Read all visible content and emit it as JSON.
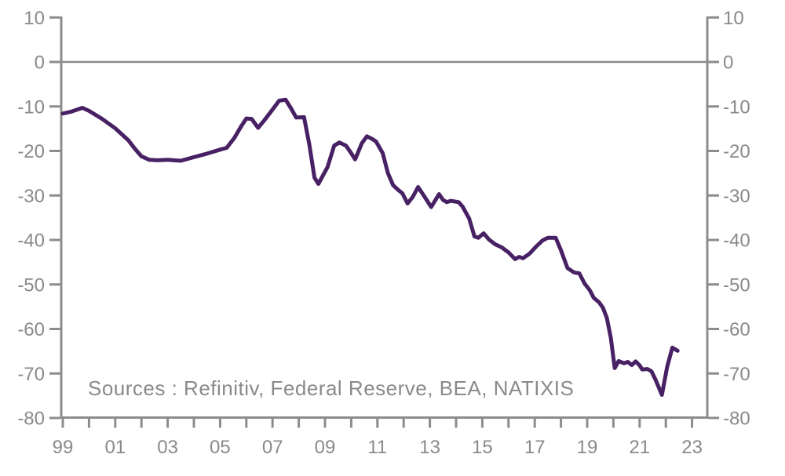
{
  "chart_data": {
    "type": "line",
    "title": "",
    "xlabel": "",
    "ylabel": "",
    "xlim": [
      1999,
      2023.7
    ],
    "ylim": [
      -80,
      10
    ],
    "grid": "zero-line-only",
    "dual_y_axis": true,
    "legend": "none",
    "colors": {
      "line": "#482164",
      "axis": "#8c8c8c",
      "label": "#8a8a8a"
    },
    "y_ticks": [
      10,
      0,
      -10,
      -20,
      -30,
      -40,
      -50,
      -60,
      -70,
      -80
    ],
    "y_tick_labels": [
      "10",
      "0",
      "-10",
      "-20",
      "-30",
      "-40",
      "-50",
      "-60",
      "-70",
      "-80"
    ],
    "x_tick_years_all": [
      1999,
      2000,
      2001,
      2002,
      2003,
      2004,
      2005,
      2006,
      2007,
      2008,
      2009,
      2010,
      2011,
      2012,
      2013,
      2014,
      2015,
      2016,
      2017,
      2018,
      2019,
      2020,
      2021,
      2022,
      2023
    ],
    "x_labeled_years": [
      1999,
      2001,
      2003,
      2005,
      2007,
      2009,
      2011,
      2013,
      2015,
      2017,
      2019,
      2021,
      2023
    ],
    "x_tick_labels": [
      "99",
      "01",
      "03",
      "05",
      "07",
      "09",
      "11",
      "13",
      "15",
      "17",
      "19",
      "21",
      "23"
    ],
    "source_note": "Sources : Refinitiv, Federal Reserve, BEA, NATIXIS",
    "series": [
      {
        "name": "line-series",
        "points": [
          [
            1999.0,
            -11.6
          ],
          [
            1999.3,
            -11.2
          ],
          [
            1999.75,
            -10.3
          ],
          [
            2000.0,
            -11.0
          ],
          [
            2000.5,
            -12.8
          ],
          [
            2001.0,
            -14.9
          ],
          [
            2001.5,
            -17.6
          ],
          [
            2001.75,
            -19.5
          ],
          [
            2002.0,
            -21.2
          ],
          [
            2002.3,
            -22.0
          ],
          [
            2002.6,
            -22.1
          ],
          [
            2003.0,
            -22.0
          ],
          [
            2003.5,
            -22.2
          ],
          [
            2003.75,
            -21.8
          ],
          [
            2004.0,
            -21.4
          ],
          [
            2004.5,
            -20.6
          ],
          [
            2005.0,
            -19.7
          ],
          [
            2005.25,
            -19.3
          ],
          [
            2005.55,
            -17.0
          ],
          [
            2005.8,
            -14.5
          ],
          [
            2006.0,
            -12.7
          ],
          [
            2006.2,
            -12.8
          ],
          [
            2006.45,
            -14.8
          ],
          [
            2006.7,
            -13.0
          ],
          [
            2007.0,
            -10.7
          ],
          [
            2007.25,
            -8.7
          ],
          [
            2007.5,
            -8.5
          ],
          [
            2007.7,
            -10.4
          ],
          [
            2007.9,
            -12.5
          ],
          [
            2008.2,
            -12.4
          ],
          [
            2008.4,
            -18.5
          ],
          [
            2008.6,
            -26.0
          ],
          [
            2008.75,
            -27.4
          ],
          [
            2009.1,
            -23.6
          ],
          [
            2009.35,
            -18.8
          ],
          [
            2009.55,
            -18.1
          ],
          [
            2009.8,
            -18.8
          ],
          [
            2010.0,
            -20.5
          ],
          [
            2010.15,
            -21.9
          ],
          [
            2010.4,
            -18.3
          ],
          [
            2010.6,
            -16.7
          ],
          [
            2010.8,
            -17.3
          ],
          [
            2010.95,
            -17.9
          ],
          [
            2011.2,
            -20.5
          ],
          [
            2011.4,
            -25.0
          ],
          [
            2011.6,
            -27.7
          ],
          [
            2011.8,
            -28.8
          ],
          [
            2011.95,
            -29.5
          ],
          [
            2012.15,
            -31.8
          ],
          [
            2012.35,
            -30.3
          ],
          [
            2012.55,
            -28.1
          ],
          [
            2012.8,
            -30.3
          ],
          [
            2013.05,
            -32.6
          ],
          [
            2013.35,
            -29.7
          ],
          [
            2013.5,
            -31.0
          ],
          [
            2013.65,
            -31.5
          ],
          [
            2013.8,
            -31.2
          ],
          [
            2014.1,
            -31.5
          ],
          [
            2014.25,
            -32.5
          ],
          [
            2014.5,
            -35.2
          ],
          [
            2014.7,
            -39.2
          ],
          [
            2014.85,
            -39.5
          ],
          [
            2015.05,
            -38.5
          ],
          [
            2015.25,
            -39.9
          ],
          [
            2015.5,
            -41.0
          ],
          [
            2015.75,
            -41.7
          ],
          [
            2016.0,
            -42.8
          ],
          [
            2016.25,
            -44.3
          ],
          [
            2016.4,
            -43.8
          ],
          [
            2016.55,
            -44.1
          ],
          [
            2016.8,
            -43.1
          ],
          [
            2017.05,
            -41.5
          ],
          [
            2017.3,
            -40.1
          ],
          [
            2017.5,
            -39.5
          ],
          [
            2017.8,
            -39.5
          ],
          [
            2018.0,
            -42.3
          ],
          [
            2018.25,
            -46.3
          ],
          [
            2018.5,
            -47.3
          ],
          [
            2018.7,
            -47.5
          ],
          [
            2018.9,
            -49.8
          ],
          [
            2019.1,
            -51.3
          ],
          [
            2019.25,
            -53.0
          ],
          [
            2019.45,
            -54.0
          ],
          [
            2019.6,
            -55.2
          ],
          [
            2019.75,
            -57.5
          ],
          [
            2019.9,
            -62.0
          ],
          [
            2020.05,
            -68.8
          ],
          [
            2020.2,
            -67.2
          ],
          [
            2020.4,
            -67.7
          ],
          [
            2020.55,
            -67.4
          ],
          [
            2020.7,
            -68.1
          ],
          [
            2020.85,
            -67.3
          ],
          [
            2021.0,
            -68.2
          ],
          [
            2021.1,
            -69.1
          ],
          [
            2021.3,
            -69.0
          ],
          [
            2021.45,
            -69.5
          ],
          [
            2021.6,
            -71.3
          ],
          [
            2021.85,
            -74.8
          ],
          [
            2022.05,
            -68.5
          ],
          [
            2022.25,
            -64.2
          ],
          [
            2022.45,
            -64.9
          ]
        ]
      }
    ]
  }
}
